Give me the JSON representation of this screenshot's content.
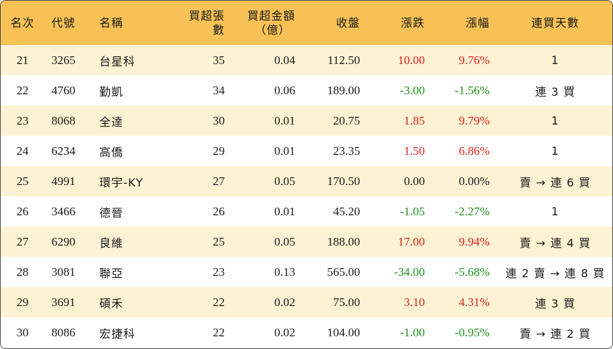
{
  "headers": {
    "rank": "名次",
    "code": "代號",
    "name": "名稱",
    "net_lots": "買超張數",
    "net_amount_l1": "買超金額",
    "net_amount_l2": "（億）",
    "close": "收盤",
    "change": "漲跌",
    "pct": "漲幅",
    "streak": "連買天數"
  },
  "colors": {
    "header_bg": "#f7c156",
    "alt_row_bg": "#fdf2d4",
    "up": "#e0201b",
    "down": "#1e8f1e"
  },
  "rows": [
    {
      "rank": "21",
      "code": "3265",
      "name": "台星科",
      "lots": "35",
      "amount": "0.04",
      "close": "112.50",
      "change": "10.00",
      "pct": "9.76%",
      "streak": "1",
      "trend": "up"
    },
    {
      "rank": "22",
      "code": "4760",
      "name": "勤凱",
      "lots": "34",
      "amount": "0.06",
      "close": "189.00",
      "change": "-3.00",
      "pct": "-1.56%",
      "streak": "連 3 買",
      "trend": "down"
    },
    {
      "rank": "23",
      "code": "8068",
      "name": "全達",
      "lots": "30",
      "amount": "0.01",
      "close": "20.75",
      "change": "1.85",
      "pct": "9.79%",
      "streak": "1",
      "trend": "up"
    },
    {
      "rank": "24",
      "code": "6234",
      "name": "高僑",
      "lots": "29",
      "amount": "0.01",
      "close": "23.35",
      "change": "1.50",
      "pct": "6.86%",
      "streak": "1",
      "trend": "up"
    },
    {
      "rank": "25",
      "code": "4991",
      "name": "環宇-KY",
      "lots": "27",
      "amount": "0.05",
      "close": "170.50",
      "change": "0.00",
      "pct": "0.00%",
      "streak": "賣 → 連 6 買",
      "trend": "flat"
    },
    {
      "rank": "26",
      "code": "3466",
      "name": "德晉",
      "lots": "26",
      "amount": "0.01",
      "close": "45.20",
      "change": "-1.05",
      "pct": "-2.27%",
      "streak": "1",
      "trend": "down"
    },
    {
      "rank": "27",
      "code": "6290",
      "name": "良維",
      "lots": "25",
      "amount": "0.05",
      "close": "188.00",
      "change": "17.00",
      "pct": "9.94%",
      "streak": "賣 → 連 4 買",
      "trend": "up"
    },
    {
      "rank": "28",
      "code": "3081",
      "name": "聯亞",
      "lots": "23",
      "amount": "0.13",
      "close": "565.00",
      "change": "-34.00",
      "pct": "-5.68%",
      "streak": "連 2 賣 → 連 8 買",
      "trend": "down"
    },
    {
      "rank": "29",
      "code": "3691",
      "name": "碩禾",
      "lots": "22",
      "amount": "0.02",
      "close": "75.00",
      "change": "3.10",
      "pct": "4.31%",
      "streak": "連 3 買",
      "trend": "up"
    },
    {
      "rank": "30",
      "code": "8086",
      "name": "宏捷科",
      "lots": "22",
      "amount": "0.02",
      "close": "104.00",
      "change": "-1.00",
      "pct": "-0.95%",
      "streak": "賣 → 連 2 買",
      "trend": "down"
    }
  ]
}
